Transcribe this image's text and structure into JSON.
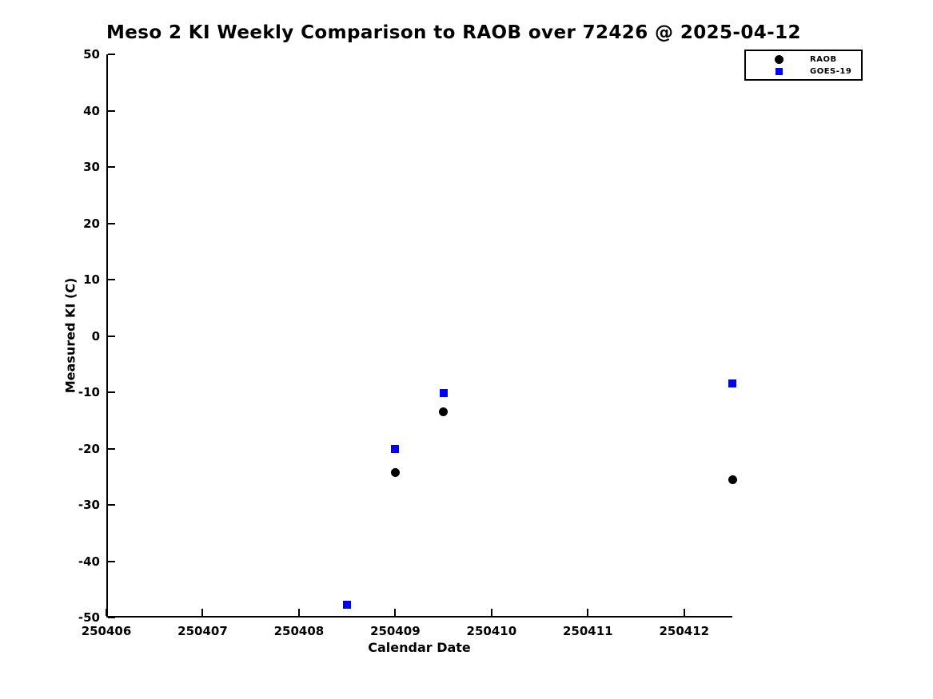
{
  "chart_data": {
    "type": "scatter",
    "title": "Meso 2 KI Weekly Comparison to RAOB over 72426 @ 2025-04-12",
    "xlabel": "Calendar Date",
    "ylabel": "Measured KI (C)",
    "xlim": [
      250406,
      250412.5
    ],
    "ylim": [
      -50,
      50
    ],
    "x_ticks": [
      250406,
      250407,
      250408,
      250409,
      250410,
      250411,
      250412
    ],
    "y_ticks": [
      50,
      40,
      30,
      20,
      10,
      0,
      -10,
      -20,
      -30,
      -40,
      -50
    ],
    "grid": false,
    "background_color": "#ffffff",
    "axis_color": "#000000",
    "legend": {
      "position": "outside-top-right",
      "entries": [
        {
          "label": "RAOB",
          "marker": "circle",
          "color": "#000000"
        },
        {
          "label": "GOES-19",
          "marker": "square",
          "color": "#0000ff"
        }
      ]
    },
    "series": [
      {
        "name": "RAOB",
        "marker": "circle",
        "color": "#000000",
        "points": [
          [
            250409.0,
            -24.3
          ],
          [
            250409.5,
            -13.5
          ],
          [
            250412.5,
            -25.5
          ]
        ]
      },
      {
        "name": "GOES-19",
        "marker": "square",
        "color": "#0000ff",
        "points": [
          [
            250408.5,
            -47.8
          ],
          [
            250409.0,
            -20.0
          ],
          [
            250409.5,
            -10.1
          ],
          [
            250412.5,
            -8.4
          ]
        ]
      }
    ]
  }
}
